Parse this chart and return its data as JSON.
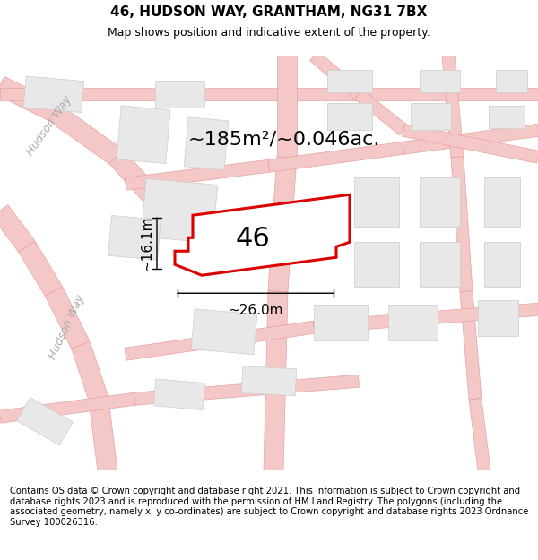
{
  "title": "46, HUDSON WAY, GRANTHAM, NG31 7BX",
  "subtitle": "Map shows position and indicative extent of the property.",
  "area_text": "~185m²/~0.046ac.",
  "dim_height": "~16.1m",
  "dim_width": "~26.0m",
  "plot_number": "46",
  "footer_text": "Contains OS data © Crown copyright and database right 2021. This information is subject to Crown copyright and database rights 2023 and is reproduced with the permission of HM Land Registry. The polygons (including the associated geometry, namely x, y co-ordinates) are subject to Crown copyright and database rights 2023 Ordnance Survey 100026316.",
  "map_bg": "#ffffff",
  "road_color": "#f5c8c8",
  "road_outline": "#e8a0a0",
  "building_fill": "#e8e8e8",
  "building_outline": "#cccccc",
  "plot_color": "#dd0000",
  "plot_fill": "#ffffff",
  "title_fontsize": 11,
  "subtitle_fontsize": 9,
  "area_fontsize": 16,
  "number_fontsize": 22,
  "dim_fontsize": 11,
  "footer_fontsize": 7.2,
  "road_label_color": "#aaaaaa",
  "road_label_fontsize": 9
}
